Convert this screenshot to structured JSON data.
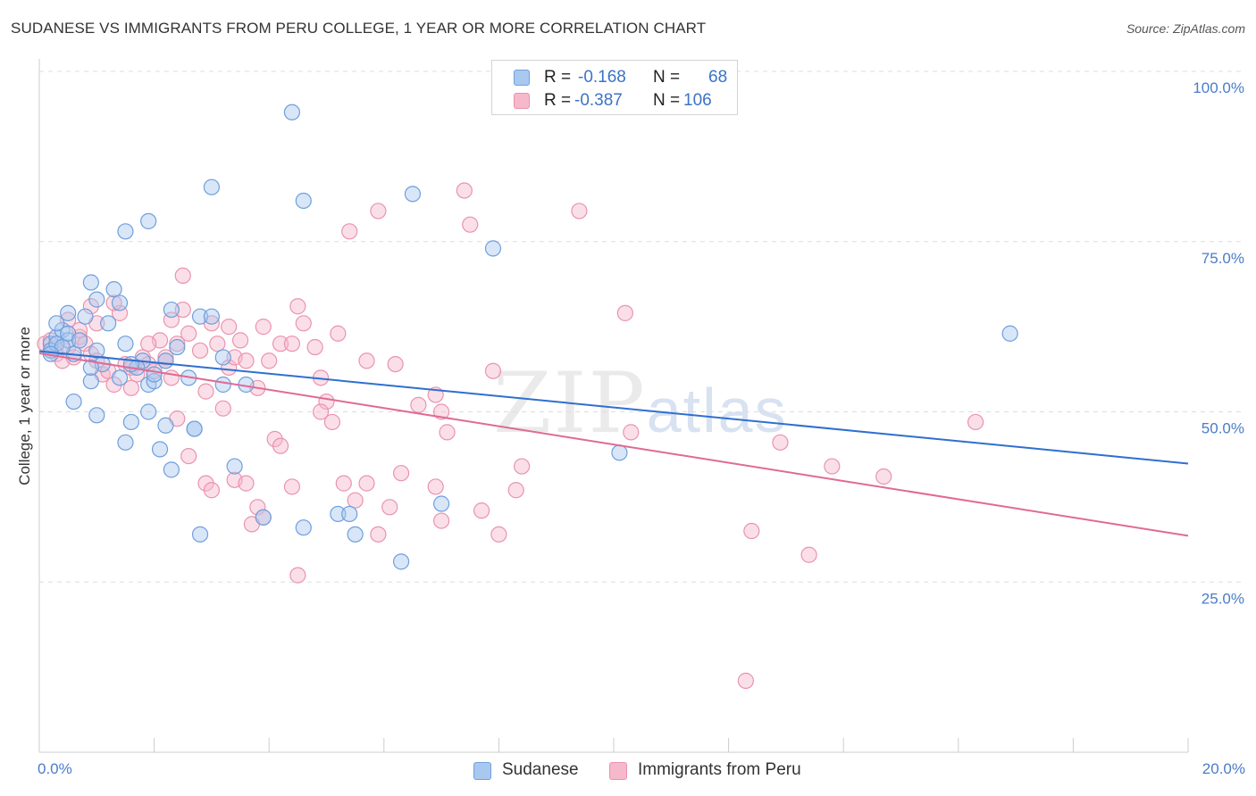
{
  "title": "SUDANESE VS IMMIGRANTS FROM PERU COLLEGE, 1 YEAR OR MORE CORRELATION CHART",
  "source": "Source: ZipAtlas.com",
  "watermark": {
    "zip": "ZIP",
    "atlas": "atlas"
  },
  "colors": {
    "sudanese_fill": "#a9c8f0",
    "sudanese_stroke": "#6f9fdc",
    "sudanese_line": "#2e6fd0",
    "peru_fill": "#f6b8cb",
    "peru_stroke": "#ea93ae",
    "peru_line": "#e06a95",
    "axis_label": "#4a7cc9",
    "grid": "#dddddd"
  },
  "legend": {
    "rows": [
      {
        "r_label": "R =",
        "r_value": "-0.168",
        "n_label": "N =",
        "n_value": "68"
      },
      {
        "r_label": "R =",
        "r_value": "-0.387",
        "n_label": "N =",
        "n_value": "106"
      }
    ],
    "bottom": [
      "Sudanese",
      "Immigrants from Peru"
    ]
  },
  "chart_data": {
    "type": "scatter",
    "title": "SUDANESE VS IMMIGRANTS FROM PERU COLLEGE, 1 YEAR OR MORE CORRELATION CHART",
    "xlabel": "",
    "ylabel": "College, 1 year or more",
    "xlim": [
      0,
      20
    ],
    "ylim": [
      0,
      100
    ],
    "x_unit": "%",
    "x_ticks_labeled": [
      "0.0%",
      "20.0%"
    ],
    "y_ticks": [
      25,
      50,
      75,
      100
    ],
    "y_tick_labels": [
      "25.0%",
      "50.0%",
      "75.0%",
      "100.0%"
    ],
    "grid": true,
    "legend_position": "top-center",
    "series": [
      {
        "name": "Sudanese",
        "r": -0.168,
        "n": 68,
        "trend": {
          "x": [
            0,
            20
          ],
          "y": [
            58.9,
            42.4
          ]
        },
        "points": [
          [
            0.2,
            60.0
          ],
          [
            0.3,
            61.0
          ],
          [
            0.2,
            59.0
          ],
          [
            0.4,
            62.0
          ],
          [
            0.5,
            60.5
          ],
          [
            0.6,
            58.5
          ],
          [
            0.3,
            63.0
          ],
          [
            0.8,
            64.0
          ],
          [
            0.9,
            69.0
          ],
          [
            1.3,
            68.0
          ],
          [
            1.4,
            66.0
          ],
          [
            1.0,
            66.5
          ],
          [
            0.5,
            64.5
          ],
          [
            1.0,
            59.0
          ],
          [
            1.2,
            63.0
          ],
          [
            1.5,
            60.0
          ],
          [
            1.1,
            57.0
          ],
          [
            1.8,
            57.5
          ],
          [
            2.2,
            57.5
          ],
          [
            1.7,
            56.5
          ],
          [
            1.4,
            55.0
          ],
          [
            0.9,
            54.5
          ],
          [
            1.9,
            54.0
          ],
          [
            2.0,
            54.5
          ],
          [
            2.6,
            55.0
          ],
          [
            2.4,
            59.5
          ],
          [
            2.8,
            64.0
          ],
          [
            3.0,
            64.0
          ],
          [
            2.3,
            65.0
          ],
          [
            3.2,
            58.0
          ],
          [
            3.6,
            54.0
          ],
          [
            3.2,
            54.0
          ],
          [
            0.6,
            51.5
          ],
          [
            1.0,
            49.5
          ],
          [
            1.6,
            48.5
          ],
          [
            1.9,
            50.0
          ],
          [
            2.2,
            48.0
          ],
          [
            2.7,
            47.5
          ],
          [
            2.7,
            47.5
          ],
          [
            1.5,
            45.5
          ],
          [
            2.1,
            44.5
          ],
          [
            2.3,
            41.5
          ],
          [
            3.4,
            42.0
          ],
          [
            3.9,
            34.5
          ],
          [
            4.6,
            33.0
          ],
          [
            5.2,
            35.0
          ],
          [
            5.4,
            35.0
          ],
          [
            5.5,
            32.0
          ],
          [
            6.3,
            28.0
          ],
          [
            7.0,
            36.5
          ],
          [
            2.8,
            32.0
          ],
          [
            1.5,
            76.5
          ],
          [
            1.9,
            78.0
          ],
          [
            3.0,
            83.0
          ],
          [
            4.4,
            94.0
          ],
          [
            4.6,
            81.0
          ],
          [
            6.5,
            82.0
          ],
          [
            7.9,
            74.0
          ],
          [
            10.1,
            44.0
          ],
          [
            16.9,
            61.5
          ],
          [
            0.3,
            60.0
          ],
          [
            0.5,
            61.5
          ],
          [
            0.4,
            59.5
          ],
          [
            1.6,
            57.0
          ],
          [
            0.7,
            60.5
          ],
          [
            0.9,
            56.5
          ],
          [
            2.0,
            55.5
          ],
          [
            0.2,
            58.5
          ]
        ]
      },
      {
        "name": "Immigrants from Peru",
        "r": -0.387,
        "n": 106,
        "trend": {
          "x": [
            0,
            20
          ],
          "y": [
            58.6,
            31.8
          ]
        },
        "points": [
          [
            0.1,
            60.0
          ],
          [
            0.2,
            59.0
          ],
          [
            0.3,
            58.5
          ],
          [
            0.2,
            60.5
          ],
          [
            0.4,
            57.5
          ],
          [
            0.5,
            59.5
          ],
          [
            0.6,
            58.0
          ],
          [
            0.7,
            61.0
          ],
          [
            0.8,
            60.0
          ],
          [
            0.9,
            58.5
          ],
          [
            1.0,
            57.5
          ],
          [
            1.1,
            55.5
          ],
          [
            1.2,
            56.0
          ],
          [
            1.3,
            54.0
          ],
          [
            1.5,
            57.0
          ],
          [
            1.6,
            56.5
          ],
          [
            1.7,
            55.5
          ],
          [
            1.8,
            58.0
          ],
          [
            1.9,
            57.0
          ],
          [
            2.0,
            56.0
          ],
          [
            2.1,
            60.5
          ],
          [
            2.2,
            57.5
          ],
          [
            2.3,
            55.0
          ],
          [
            2.4,
            60.0
          ],
          [
            2.6,
            61.5
          ],
          [
            2.5,
            65.0
          ],
          [
            2.5,
            70.0
          ],
          [
            2.8,
            59.0
          ],
          [
            2.9,
            53.0
          ],
          [
            3.0,
            63.0
          ],
          [
            3.1,
            60.0
          ],
          [
            3.3,
            56.5
          ],
          [
            3.4,
            58.0
          ],
          [
            3.5,
            60.5
          ],
          [
            3.6,
            57.5
          ],
          [
            3.8,
            53.5
          ],
          [
            3.9,
            62.5
          ],
          [
            4.0,
            57.5
          ],
          [
            4.2,
            60.0
          ],
          [
            4.5,
            65.5
          ],
          [
            4.6,
            63.0
          ],
          [
            4.8,
            59.5
          ],
          [
            4.9,
            55.0
          ],
          [
            5.0,
            51.5
          ],
          [
            5.1,
            48.5
          ],
          [
            5.2,
            61.5
          ],
          [
            4.9,
            50.0
          ],
          [
            5.7,
            57.5
          ],
          [
            1.4,
            64.5
          ],
          [
            1.0,
            63.0
          ],
          [
            0.5,
            63.5
          ],
          [
            0.7,
            62.0
          ],
          [
            1.3,
            66.0
          ],
          [
            2.3,
            63.5
          ],
          [
            3.3,
            62.5
          ],
          [
            4.4,
            60.0
          ],
          [
            1.9,
            60.0
          ],
          [
            2.2,
            58.0
          ],
          [
            0.9,
            65.5
          ],
          [
            3.2,
            50.5
          ],
          [
            2.9,
            39.5
          ],
          [
            3.0,
            38.5
          ],
          [
            3.4,
            40.0
          ],
          [
            3.6,
            39.5
          ],
          [
            3.8,
            36.0
          ],
          [
            3.9,
            34.5
          ],
          [
            4.1,
            46.0
          ],
          [
            4.4,
            39.0
          ],
          [
            4.2,
            45.0
          ],
          [
            5.3,
            39.5
          ],
          [
            5.5,
            37.0
          ],
          [
            5.7,
            39.5
          ],
          [
            5.9,
            32.0
          ],
          [
            6.1,
            36.0
          ],
          [
            6.3,
            41.0
          ],
          [
            6.9,
            52.5
          ],
          [
            7.1,
            47.0
          ],
          [
            6.9,
            39.0
          ],
          [
            7.0,
            34.0
          ],
          [
            6.6,
            51.0
          ],
          [
            7.0,
            50.0
          ],
          [
            7.7,
            35.5
          ],
          [
            8.0,
            32.0
          ],
          [
            7.9,
            56.0
          ],
          [
            8.3,
            38.5
          ],
          [
            8.4,
            42.0
          ],
          [
            9.4,
            79.5
          ],
          [
            10.2,
            64.5
          ],
          [
            10.3,
            47.0
          ],
          [
            12.4,
            32.5
          ],
          [
            12.9,
            45.5
          ],
          [
            13.4,
            29.0
          ],
          [
            13.8,
            42.0
          ],
          [
            14.7,
            40.5
          ],
          [
            16.3,
            48.5
          ],
          [
            12.3,
            10.5
          ],
          [
            4.5,
            26.0
          ],
          [
            5.4,
            76.5
          ],
          [
            5.9,
            79.5
          ],
          [
            7.4,
            82.5
          ],
          [
            7.5,
            77.5
          ],
          [
            3.7,
            33.5
          ],
          [
            2.4,
            49.0
          ],
          [
            2.6,
            43.5
          ],
          [
            6.2,
            57.0
          ],
          [
            1.6,
            53.5
          ]
        ]
      }
    ]
  }
}
